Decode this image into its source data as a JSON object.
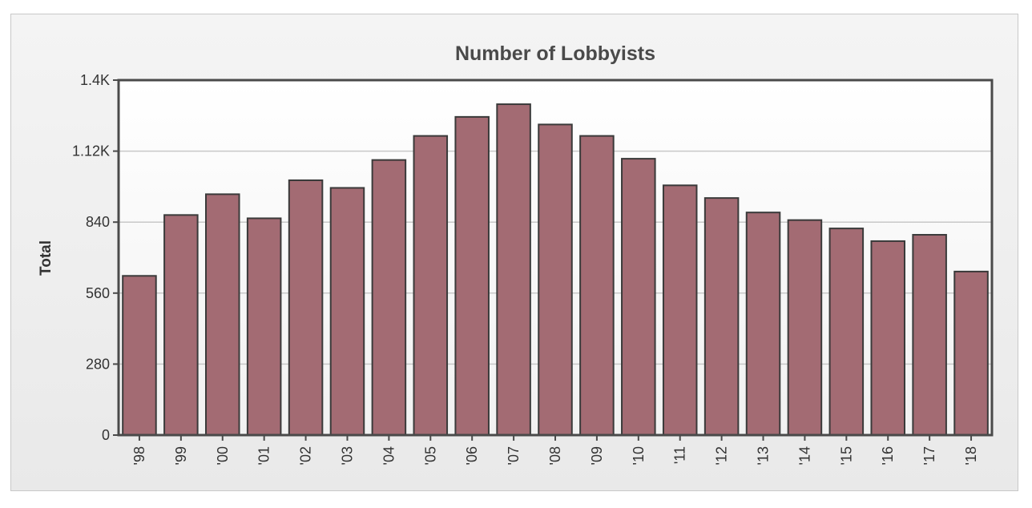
{
  "chart_data": {
    "type": "bar",
    "title": "Number of Lobbyists",
    "xlabel": "",
    "ylabel": "Total",
    "ylim": [
      0,
      1400
    ],
    "yticks": [
      {
        "value": 0,
        "label": "0"
      },
      {
        "value": 280,
        "label": "280"
      },
      {
        "value": 560,
        "label": "560"
      },
      {
        "value": 840,
        "label": "840"
      },
      {
        "value": 1120,
        "label": "1.12K"
      },
      {
        "value": 1400,
        "label": "1.4K"
      }
    ],
    "categories": [
      "'98",
      "'99",
      "'00",
      "'01",
      "'02",
      "'03",
      "'04",
      "'05",
      "'06",
      "'07",
      "'08",
      "'09",
      "'10",
      "'11",
      "'12",
      "'13",
      "'14",
      "'15",
      "'16",
      "'17",
      "'18"
    ],
    "values": [
      628,
      868,
      950,
      855,
      1005,
      975,
      1085,
      1180,
      1255,
      1305,
      1225,
      1180,
      1090,
      985,
      935,
      878,
      848,
      815,
      765,
      790,
      645
    ],
    "grid": true,
    "legend": "none",
    "colors": {
      "bar_fill": "#a36b73",
      "bar_stroke": "#3a3a3a",
      "plot_bg": "#ffffff",
      "grid": "#c8c8c8",
      "frame": "#4a4a4a"
    }
  }
}
